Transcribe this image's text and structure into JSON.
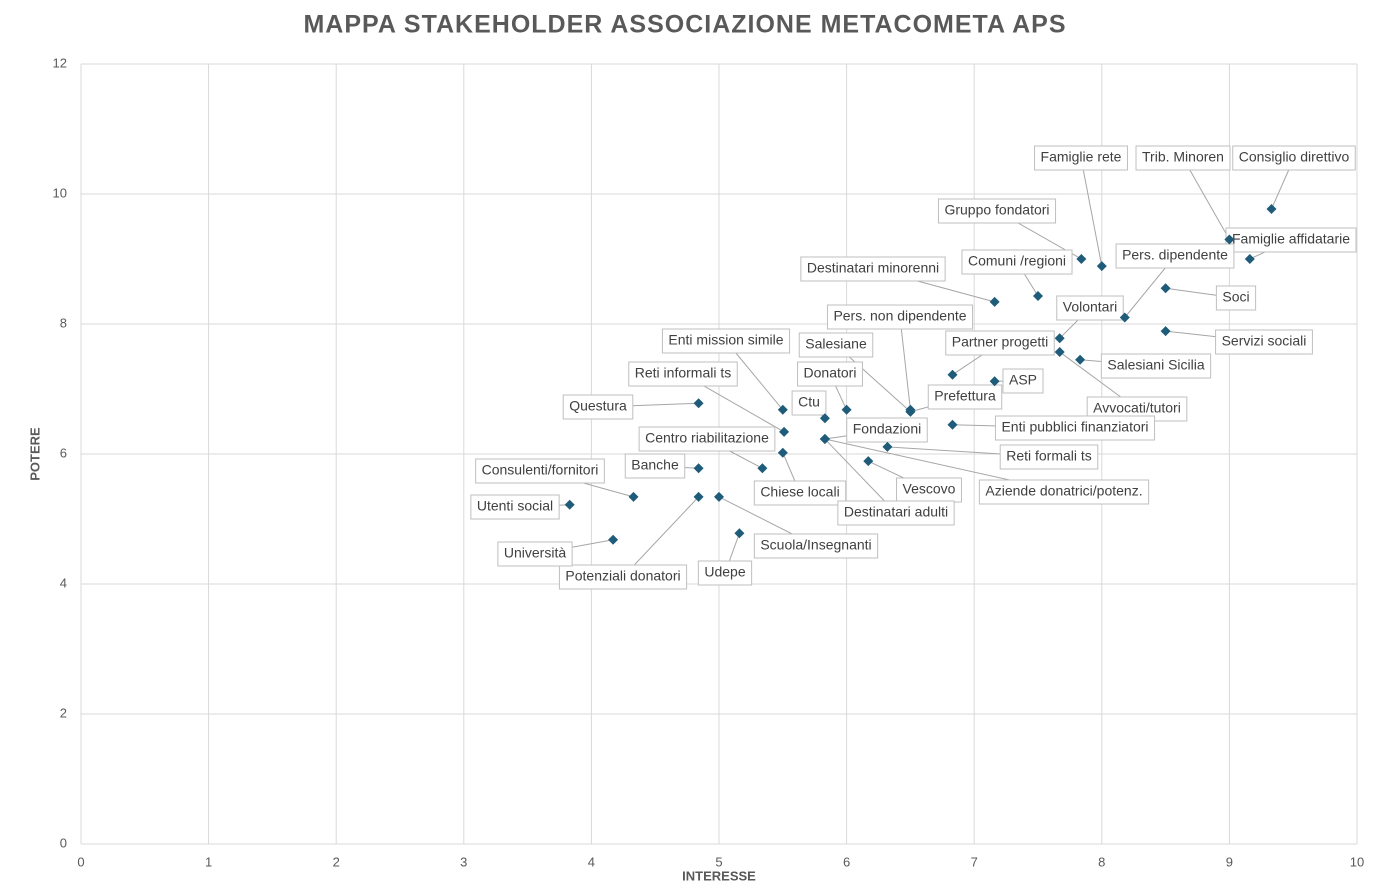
{
  "chart_data": {
    "type": "scatter",
    "title": "MAPPA STAKEHOLDER ASSOCIAZIONE METACOMETA APS",
    "xlabel": "INTERESSE",
    "ylabel": "POTERE",
    "color": "#1f5c7a",
    "xlim": [
      0,
      10
    ],
    "xticks": [
      0,
      1,
      2,
      3,
      4,
      5,
      6,
      7,
      8,
      9,
      10
    ],
    "ylim": [
      0,
      12
    ],
    "yticks": [
      0,
      2,
      4,
      6,
      8,
      10,
      12
    ],
    "grid": true,
    "labels": [
      "Consiglio direttivo",
      "Famiglie affidatarie",
      "Trib. Minoren",
      "Famiglie rete",
      "Gruppo fondatori",
      "Pers. dipendente",
      "Comuni /regioni",
      "Soci",
      "Destinatari minorenni",
      "Volontari",
      "Servizi sociali",
      "Salesiani Sicilia",
      "Avvocati/tutori",
      "Partner progetti",
      "ASP",
      "Pers. non dipendente",
      "Salesiane",
      "Prefettura",
      "Donatori",
      "Ctu",
      "Enti mission simile",
      "Reti informali ts",
      "Questura",
      "Enti pubblici finanziatori",
      "Fondazioni",
      "Centro riabilitazione",
      "Chiese locali",
      "Banche",
      "Reti formali ts",
      "Vescovo",
      "Aziende donatrici/potenz.",
      "Destinatari adulti",
      "Consulenti/fornitori",
      "Utenti social",
      "Potenziali donatori",
      "Scuola/Insegnanti",
      "Udepe",
      "Università"
    ],
    "x": [
      9.33,
      9.16,
      9.0,
      8.0,
      7.84,
      8.18,
      7.5,
      8.5,
      7.16,
      7.67,
      8.5,
      7.83,
      7.67,
      6.83,
      7.16,
      6.5,
      6.5,
      6.5,
      6.0,
      5.83,
      5.5,
      5.51,
      4.84,
      6.83,
      5.83,
      5.34,
      5.5,
      4.84,
      6.32,
      6.17,
      5.83,
      5.83,
      4.33,
      3.83,
      4.84,
      5.0,
      5.16,
      4.17
    ],
    "values": [
      9.77,
      9.0,
      9.3,
      8.89,
      9.0,
      8.1,
      8.43,
      8.55,
      8.34,
      7.78,
      7.89,
      7.45,
      7.57,
      7.22,
      7.12,
      6.68,
      6.65,
      6.65,
      6.68,
      6.55,
      6.68,
      6.34,
      6.78,
      6.45,
      6.23,
      5.78,
      6.02,
      5.78,
      6.11,
      5.89,
      6.23,
      6.23,
      5.34,
      5.22,
      5.34,
      5.34,
      4.78,
      4.68
    ]
  }
}
